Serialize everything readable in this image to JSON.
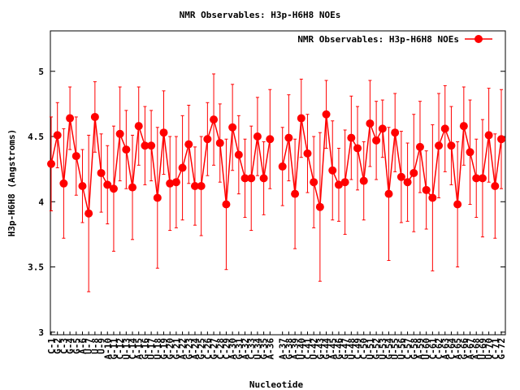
{
  "chart_data": {
    "type": "errorbar-line",
    "title": "NMR Observables: H3p-H6H8 NOEs",
    "xlabel": "Nucleotide",
    "ylabel": "H3p-H6H8 (Angstroms)",
    "categories": [
      "C-1",
      "G-2",
      "C-3",
      "G-4",
      "G-5",
      "A-6",
      "U-7",
      "U-8",
      "U-9",
      "A-10",
      "G-11",
      "C-12",
      "U-13",
      "C-14",
      "A-15",
      "G-16",
      "U-17",
      "U-18",
      "G-19",
      "G-20",
      "G-21",
      "A-22",
      "G-23",
      "A-24",
      "G-25",
      "C-26",
      "G-27",
      "C-28",
      "C-29",
      "A-30",
      "G-31",
      "A-32",
      "C-33",
      "U-34",
      "G-35",
      "A-36",
      null,
      "A-37",
      "G-38",
      "A-39",
      "U-40",
      "C-41",
      "U-42",
      "G-43",
      "G-44",
      "A-45",
      "G-46",
      "G-47",
      "U-48",
      "C-49",
      "C-50",
      "U-51",
      "G-52",
      "U-53",
      "G-54",
      "U-55",
      "U-56",
      "C-57",
      "G-58",
      "A-59",
      "U-60",
      "C-61",
      "C-62",
      "A-63",
      "C-64",
      "A-65",
      "G-66",
      "A-67",
      "A-68",
      "U-69",
      "U-70",
      "C-71",
      "G-72"
    ],
    "series": [
      {
        "name": "NMR Observables: H3p-H6H8 NOEs",
        "color": "#ff0000",
        "values": [
          4.29,
          4.51,
          4.14,
          4.64,
          4.35,
          4.12,
          3.91,
          4.65,
          4.22,
          4.13,
          4.1,
          4.52,
          4.4,
          4.11,
          4.58,
          4.43,
          4.43,
          4.03,
          4.53,
          4.14,
          4.15,
          4.26,
          4.44,
          4.12,
          4.12,
          4.48,
          4.63,
          4.45,
          3.98,
          4.57,
          4.36,
          4.18,
          4.18,
          4.5,
          4.18,
          4.48,
          null,
          4.27,
          4.49,
          4.06,
          4.64,
          4.37,
          4.15,
          3.96,
          4.67,
          4.24,
          4.13,
          4.15,
          4.49,
          4.41,
          4.16,
          4.6,
          4.47,
          4.56,
          4.06,
          4.53,
          4.19,
          4.15,
          4.22,
          4.42,
          4.09,
          4.03,
          4.43,
          4.56,
          4.43,
          3.98,
          4.58,
          4.38,
          4.18,
          4.18,
          4.51,
          4.12,
          4.48
        ],
        "errors": [
          0.36,
          0.25,
          0.42,
          0.24,
          0.3,
          0.28,
          0.6,
          0.27,
          0.3,
          0.3,
          0.48,
          0.36,
          0.3,
          0.4,
          0.3,
          0.3,
          0.27,
          0.54,
          0.32,
          0.36,
          0.35,
          0.4,
          0.3,
          0.3,
          0.38,
          0.28,
          0.35,
          0.3,
          0.5,
          0.33,
          0.3,
          0.3,
          0.4,
          0.3,
          0.28,
          0.38,
          null,
          0.3,
          0.33,
          0.42,
          0.3,
          0.3,
          0.35,
          0.57,
          0.26,
          0.38,
          0.28,
          0.4,
          0.32,
          0.32,
          0.3,
          0.33,
          0.3,
          0.22,
          0.51,
          0.3,
          0.35,
          0.3,
          0.45,
          0.35,
          0.3,
          0.56,
          0.4,
          0.33,
          0.3,
          0.48,
          0.3,
          0.4,
          0.3,
          0.45,
          0.36,
          0.4,
          0.38
        ]
      }
    ],
    "ylim": [
      2.98,
      5.31
    ],
    "yticks": [
      3,
      3.5,
      4,
      4.5,
      5
    ],
    "grid": false,
    "legend": "top-right"
  }
}
